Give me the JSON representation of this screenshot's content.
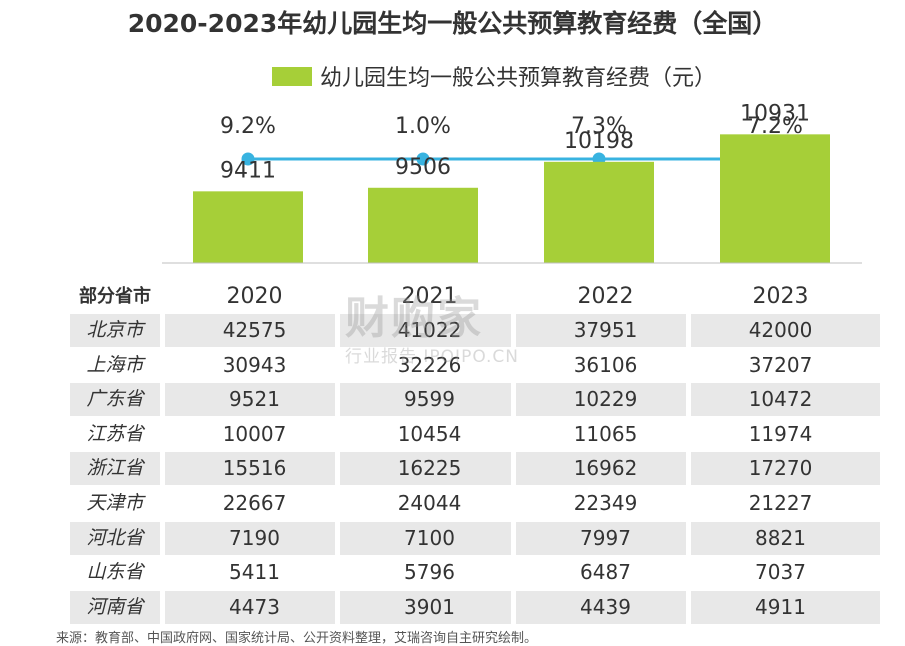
{
  "title": "2020-2023年幼儿园生均一般公共预算教育经费（全国）",
  "legend": {
    "label": "幼儿园生均一般公共预算教育经费（元）",
    "color": "#a6cf38"
  },
  "colors": {
    "bar": "#a6cf38",
    "line": "#38b3e0",
    "stripe": "#e8e8e8"
  },
  "chart_data": {
    "type": "bar",
    "categories": [
      "2020",
      "2021",
      "2022",
      "2023"
    ],
    "series": [
      {
        "name": "幼儿园生均一般公共预算教育经费（元）",
        "values": [
          9411,
          9506,
          10198,
          10931
        ]
      }
    ],
    "growth_labels": [
      "9.2%",
      "1.0%",
      "7.3%",
      "7.2%"
    ],
    "ylim": [
      7500,
      11500
    ]
  },
  "table": {
    "header_label": "部分省市",
    "years": [
      "2020",
      "2021",
      "2022",
      "2023"
    ],
    "rows": [
      {
        "name": "北京市",
        "values": [
          "42575",
          "41022",
          "37951",
          "42000"
        ]
      },
      {
        "name": "上海市",
        "values": [
          "30943",
          "32226",
          "36106",
          "37207"
        ]
      },
      {
        "name": "广东省",
        "values": [
          "9521",
          "9599",
          "10229",
          "10472"
        ]
      },
      {
        "name": "江苏省",
        "values": [
          "10007",
          "10454",
          "11065",
          "11974"
        ]
      },
      {
        "name": "浙江省",
        "values": [
          "15516",
          "16225",
          "16962",
          "17270"
        ]
      },
      {
        "name": "天津市",
        "values": [
          "22667",
          "24044",
          "22349",
          "21227"
        ]
      },
      {
        "name": "河北省",
        "values": [
          "7190",
          "7100",
          "7997",
          "8821"
        ]
      },
      {
        "name": "山东省",
        "values": [
          "5411",
          "5796",
          "6487",
          "7037"
        ]
      },
      {
        "name": "河南省",
        "values": [
          "4473",
          "3901",
          "4439",
          "4911"
        ]
      }
    ]
  },
  "watermark": {
    "main": "财购家",
    "sub": "行业报告 IPOIPO.CN"
  },
  "source": "来源：教育部、中国政府网、国家统计局、公开资料整理，艾瑞咨询自主研究绘制。"
}
